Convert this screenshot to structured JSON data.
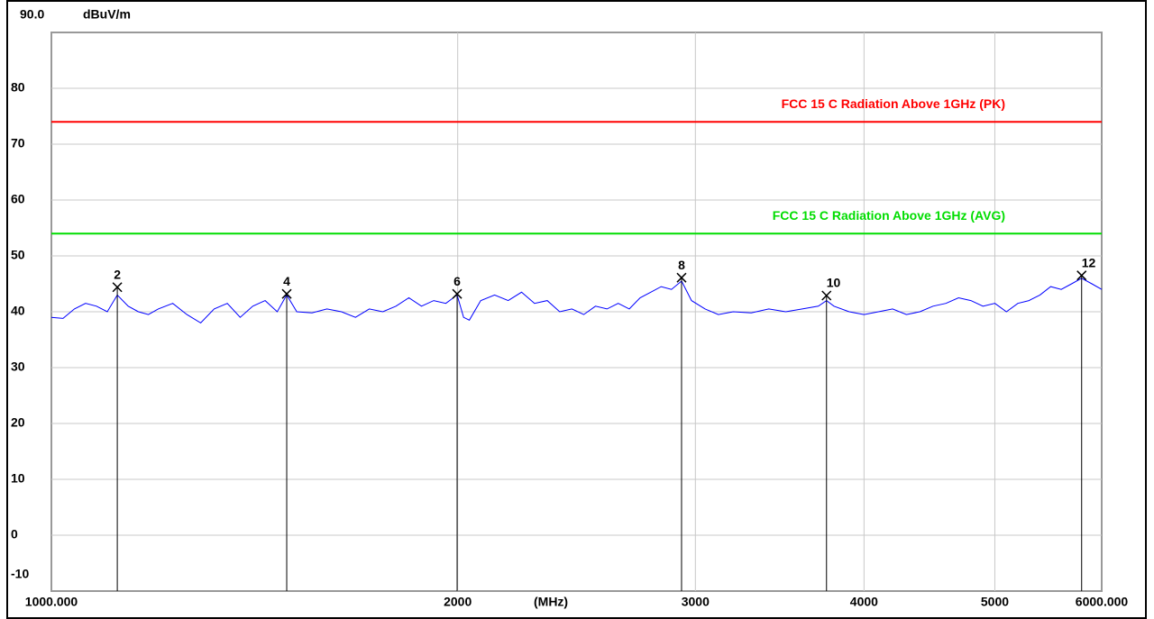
{
  "chart_data": {
    "type": "line",
    "ylabel": "dBuV/m",
    "xlabel": "(MHz)",
    "xscale": "log",
    "grid": true,
    "xlim": [
      1000,
      6000
    ],
    "ylim": [
      -10,
      90
    ],
    "xticks": [
      {
        "value": 1000,
        "label": "1000.000"
      },
      2000,
      3000,
      4000,
      5000,
      {
        "value": 6000,
        "label": "6000.000"
      }
    ],
    "yticks": [
      {
        "value": 90,
        "label": "90.0"
      },
      80,
      70,
      60,
      50,
      40,
      30,
      20,
      10,
      0,
      -10
    ],
    "limits": [
      {
        "name": "FCC 15 C Radiation Above 1GHz (PK)",
        "color": "#ff0000",
        "value": 74
      },
      {
        "name": "FCC 15 C Radiation Above 1GHz (AVG)",
        "color": "#00dd00",
        "value": 54
      }
    ],
    "series": [
      {
        "color": "#0000ff",
        "x": [
          1000,
          1020,
          1040,
          1060,
          1080,
          1100,
          1119,
          1140,
          1160,
          1180,
          1200,
          1230,
          1260,
          1290,
          1320,
          1350,
          1380,
          1410,
          1440,
          1470,
          1494,
          1520,
          1560,
          1600,
          1640,
          1680,
          1720,
          1760,
          1800,
          1840,
          1880,
          1920,
          1960,
          1998,
          2020,
          2040,
          2080,
          2130,
          2180,
          2230,
          2280,
          2330,
          2380,
          2430,
          2480,
          2530,
          2580,
          2630,
          2680,
          2730,
          2780,
          2830,
          2880,
          2930,
          2980,
          3050,
          3120,
          3200,
          3300,
          3400,
          3500,
          3600,
          3700,
          3752,
          3800,
          3900,
          4000,
          4100,
          4200,
          4300,
          4400,
          4500,
          4600,
          4700,
          4800,
          4900,
          5000,
          5100,
          5200,
          5300,
          5400,
          5500,
          5600,
          5700,
          5798,
          5900,
          6000
        ],
        "values": [
          39,
          38.8,
          40.5,
          41.5,
          41,
          40,
          43,
          41,
          40,
          39.5,
          40.5,
          41.5,
          39.5,
          38,
          40.5,
          41.5,
          39,
          41,
          42,
          40,
          43,
          40,
          39.8,
          40.5,
          40,
          39,
          40.5,
          40,
          41,
          42.5,
          41,
          42,
          41.5,
          43,
          39,
          38.5,
          42,
          43,
          42,
          43.5,
          41.5,
          42,
          40,
          40.5,
          39.5,
          41,
          40.5,
          41.5,
          40.5,
          42.5,
          43.5,
          44.5,
          44,
          45.5,
          42,
          40.5,
          39.5,
          40,
          39.8,
          40.5,
          40,
          40.5,
          41,
          42,
          41,
          40,
          39.5,
          40,
          40.5,
          39.5,
          40,
          41,
          41.5,
          42.5,
          42,
          41,
          41.5,
          40,
          41.5,
          42,
          43,
          44.5,
          44,
          45,
          46,
          45,
          44
        ]
      }
    ],
    "markers": [
      {
        "label": "2",
        "x": 1119,
        "value": 44.4
      },
      {
        "label": "4",
        "x": 1494,
        "value": 43.2
      },
      {
        "label": "6",
        "x": 1998,
        "value": 43.2
      },
      {
        "label": "8",
        "x": 2930,
        "value": 46.1
      },
      {
        "label": "10",
        "x": 3752,
        "value": 42.9
      },
      {
        "label": "12",
        "x": 5798,
        "value": 46.5
      }
    ]
  }
}
